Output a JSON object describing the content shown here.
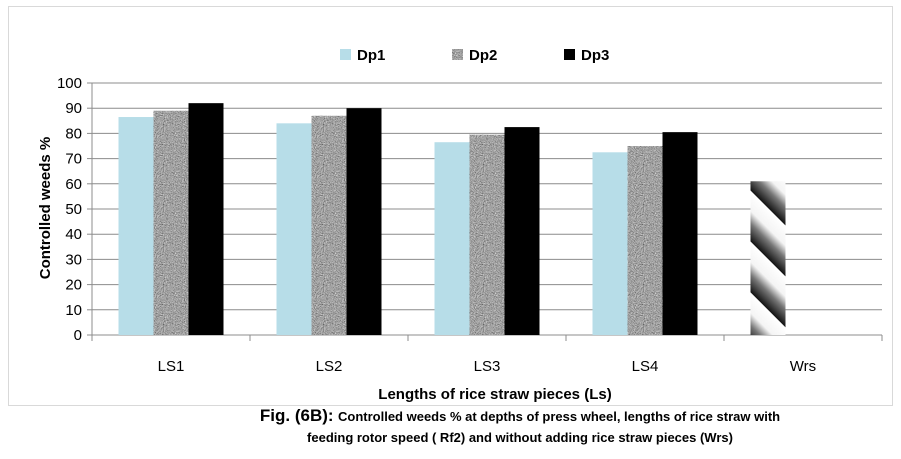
{
  "chart_data": {
    "type": "bar",
    "categories": [
      "LS1",
      "LS2",
      "LS3",
      "LS4",
      "Wrs"
    ],
    "series": [
      {
        "name": "Dp1",
        "values": [
          86.5,
          84,
          76.5,
          72.5,
          null
        ],
        "color": "#b7dde8",
        "pattern": "solid"
      },
      {
        "name": "Dp2",
        "values": [
          89,
          87,
          79.5,
          75,
          null
        ],
        "color": "#808080",
        "pattern": "granite"
      },
      {
        "name": "Dp3",
        "values": [
          92,
          90,
          82.5,
          80.5,
          null
        ],
        "color": "#000000",
        "pattern": "solid"
      },
      {
        "values": [
          null,
          null,
          null,
          null,
          61
        ],
        "color": "#808080",
        "pattern": "diagonal-stripes"
      }
    ],
    "title": "",
    "xlabel": "Lengths of rice straw pieces (Ls)",
    "ylabel": "Controlled weeds %",
    "ylim": [
      0,
      100
    ],
    "yticks": [
      0,
      10,
      20,
      30,
      40,
      50,
      60,
      70,
      80,
      90,
      100
    ],
    "grid": true,
    "legend": "top-center"
  },
  "caption": {
    "label": "Fig. (6B):",
    "line1": "Controlled weeds % at depths of  press wheel, lengths of rice straw  with",
    "line2": "feeding rotor speed  ( Rf2) and  without adding rice straw pieces (Wrs)"
  }
}
